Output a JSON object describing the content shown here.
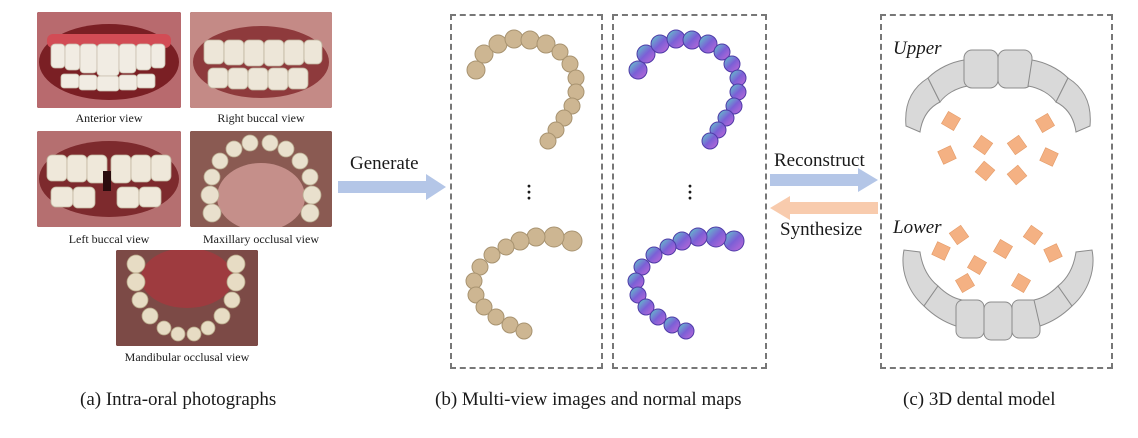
{
  "photos": {
    "anterior": "Anterior view",
    "right_buccal": "Right buccal view",
    "left_buccal": "Left buccal view",
    "maxillary": "Maxillary occlusal view",
    "mandibular": "Mandibular occlusal view"
  },
  "arrows": {
    "generate": "Generate",
    "reconstruct": "Reconstruct",
    "synthesize": "Synthesize"
  },
  "model": {
    "upper": "Upper",
    "lower": "Lower"
  },
  "captions": {
    "a": "(a) Intra-oral photographs",
    "b": "(b) Multi-view images and normal maps",
    "c": "(c) 3D dental model"
  },
  "colors": {
    "arrow_blue": "#b4c6e7",
    "arrow_orange": "#f8cbad",
    "camera_orange": "#f4b183",
    "tooth_beige": "#cdb692",
    "normal_purple": "#7b5fd6"
  }
}
